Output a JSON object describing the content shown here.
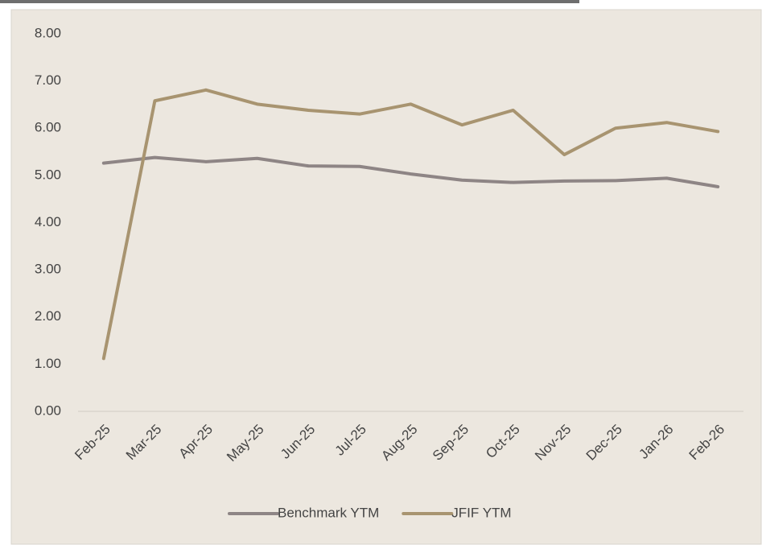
{
  "chart_data": {
    "type": "line",
    "categories": [
      "Feb-25",
      "Mar-25",
      "Apr-25",
      "May-25",
      "Jun-25",
      "Jul-25",
      "Aug-25",
      "Sep-25",
      "Oct-25",
      "Nov-25",
      "Dec-25",
      "Jan-26",
      "Feb-26"
    ],
    "series": [
      {
        "name": "Benchmark YTM",
        "color": "#8e8585",
        "values": [
          5.26,
          5.38,
          5.29,
          5.36,
          5.2,
          5.19,
          5.03,
          4.9,
          4.85,
          4.88,
          4.89,
          4.94,
          4.76
        ]
      },
      {
        "name": "JFIF YTM",
        "color": "#a89470",
        "values": [
          1.12,
          6.58,
          6.81,
          6.51,
          6.38,
          6.3,
          6.51,
          6.07,
          6.38,
          5.44,
          6.0,
          6.12,
          5.93
        ]
      }
    ],
    "ylim": [
      0,
      8
    ],
    "yticks": [
      {
        "value": 0,
        "label": "0.00"
      },
      {
        "value": 1,
        "label": "1.00"
      },
      {
        "value": 2,
        "label": "2.00"
      },
      {
        "value": 3,
        "label": "3.00"
      },
      {
        "value": 4,
        "label": "4.00"
      },
      {
        "value": 5,
        "label": "5.00"
      },
      {
        "value": 6,
        "label": "6.00"
      },
      {
        "value": 7,
        "label": "7.00"
      },
      {
        "value": 8,
        "label": "8.00"
      }
    ],
    "legend": "bottom"
  }
}
